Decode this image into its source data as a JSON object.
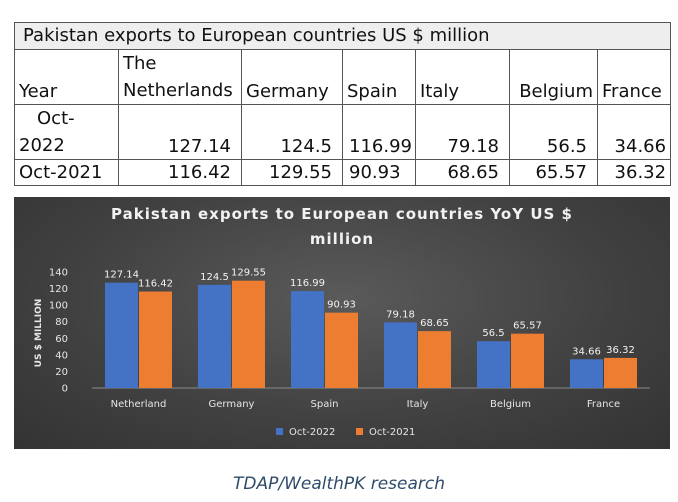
{
  "table": {
    "title": "Pakistan exports to European countries US $ million",
    "year_header": "Year",
    "headers": [
      "The Netherlands",
      "Germany",
      "Spain",
      "Italy",
      "Belgium",
      "France"
    ],
    "rows": [
      {
        "year": "Oct-2022",
        "year_line1": "Oct-",
        "year_line2": "2022",
        "values": [
          "127.14",
          "124.5",
          "116.99",
          "79.18",
          "56.5",
          "34.66"
        ]
      },
      {
        "year": "Oct-2021",
        "values": [
          "116.42",
          "129.55",
          "90.93",
          "68.65",
          "65.57",
          "36.32"
        ]
      }
    ]
  },
  "chart_data": {
    "type": "bar",
    "title": "Pakistan exports to European countries YoY US $ million",
    "title_line1": "Pakistan exports to European countries YoY US $",
    "title_line2": "million",
    "ylabel": "US $ MILLION",
    "xlabel": "",
    "categories": [
      "Netherland",
      "Germany",
      "Spain",
      "Italy",
      "Belgium",
      "France"
    ],
    "series": [
      {
        "name": "Oct-2022",
        "values": [
          127.14,
          124.5,
          116.99,
          79.18,
          56.5,
          34.66
        ],
        "color": "#4472c4"
      },
      {
        "name": "Oct-2021",
        "values": [
          116.42,
          129.55,
          90.93,
          68.65,
          65.57,
          36.32
        ],
        "color": "#ed7d31"
      }
    ],
    "data_labels": [
      [
        "127.14",
        "124.5",
        "116.99",
        "79.18",
        "56.5",
        "34.66"
      ],
      [
        "116.42",
        "129.55",
        "90.93",
        "68.65",
        "65.57",
        "36.32"
      ]
    ],
    "ylim": [
      0,
      140
    ],
    "yticks": [
      0,
      20,
      40,
      60,
      80,
      100,
      120,
      140
    ],
    "legend_position": "bottom",
    "grid": false
  },
  "source": "TDAP/WealthPK research"
}
